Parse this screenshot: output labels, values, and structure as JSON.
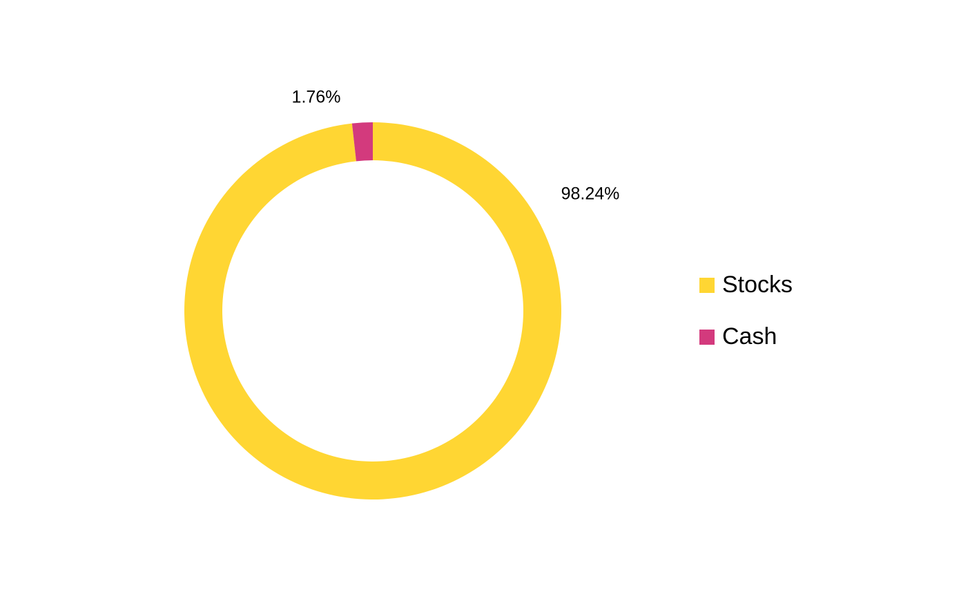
{
  "chart_data": {
    "type": "donut",
    "categories": [
      "Stocks",
      "Cash"
    ],
    "values": [
      98.24,
      1.76
    ],
    "value_labels": [
      "98.24%",
      "1.76%"
    ],
    "colors": [
      "#FFD633",
      "#D33A7D"
    ]
  }
}
